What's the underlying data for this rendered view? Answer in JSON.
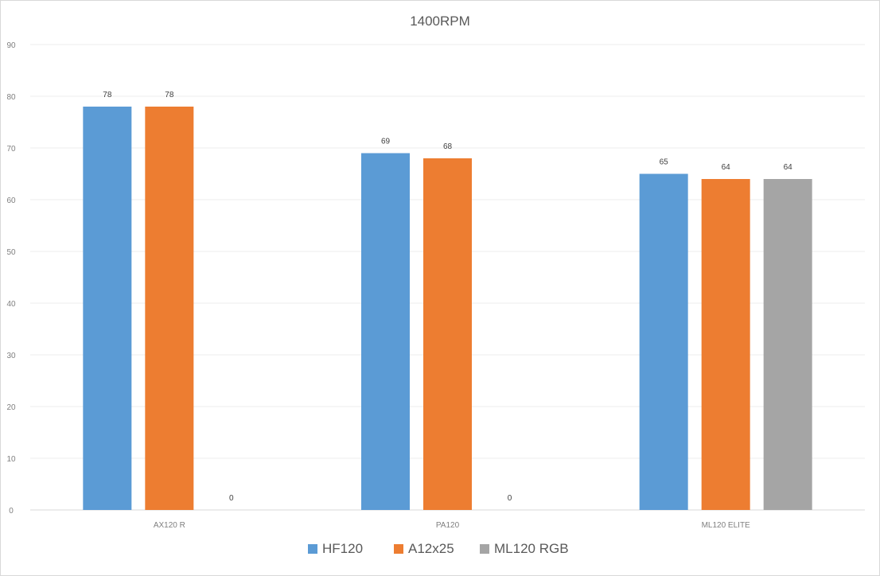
{
  "chart_data": {
    "type": "bar",
    "title": "1400RPM",
    "xlabel": "",
    "ylabel": "",
    "ylim": [
      0,
      90
    ],
    "yticks": [
      0,
      10,
      20,
      30,
      40,
      50,
      60,
      70,
      80,
      90
    ],
    "grid": true,
    "legend_position": "bottom",
    "categories": [
      "AX120 R",
      "PA120",
      "ML120 ELITE"
    ],
    "series": [
      {
        "name": "HF120",
        "color": "#5b9bd5",
        "values": [
          78,
          69,
          65
        ]
      },
      {
        "name": "A12x25",
        "color": "#ed7d31",
        "values": [
          78,
          68,
          64
        ]
      },
      {
        "name": "ML120 RGB",
        "color": "#a5a5a5",
        "values": [
          0,
          0,
          64
        ]
      }
    ],
    "data_labels": [
      [
        "78",
        "69",
        "65"
      ],
      [
        "78",
        "68",
        "64"
      ],
      [
        "0",
        "0",
        "64"
      ]
    ]
  }
}
